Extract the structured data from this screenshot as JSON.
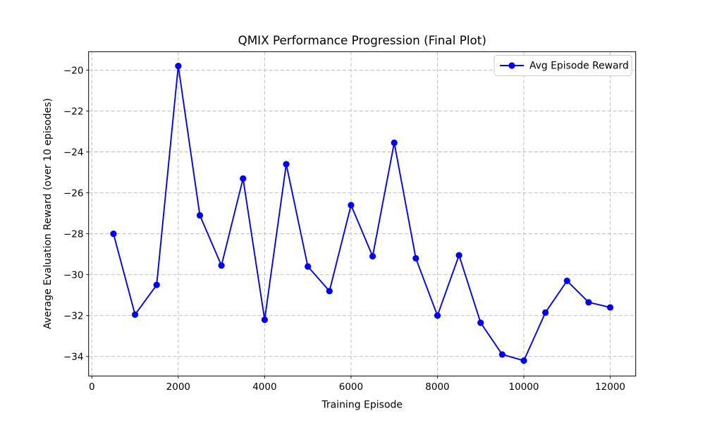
{
  "chart_data": {
    "type": "line",
    "title": "QMIX Performance Progression (Final Plot)",
    "xlabel": "Training Episode",
    "ylabel": "Average Evaluation Reward (over 10 episodes)",
    "legend": {
      "label": "Avg Episode Reward",
      "position": "upper right",
      "marker": "circle"
    },
    "grid": true,
    "grid_color": "#b0b0b0",
    "background_color": "#ffffff",
    "xticks": [
      0,
      2000,
      4000,
      6000,
      8000,
      10000,
      12000
    ],
    "yticks": [
      -34,
      -32,
      -30,
      -28,
      -26,
      -24,
      -22,
      -20
    ],
    "xlim": [
      -75,
      12590
    ],
    "ylim": [
      -34.95,
      -19.1
    ],
    "series": [
      {
        "name": "Avg Episode Reward",
        "color": "#0000ff",
        "marker": "circle",
        "x": [
          500,
          1000,
          1500,
          2000,
          2500,
          3000,
          3500,
          4000,
          4500,
          5000,
          5500,
          6000,
          6500,
          7000,
          7500,
          8000,
          8500,
          9000,
          9500,
          10000,
          10500,
          11000,
          11500,
          12000
        ],
        "y": [
          -28.0,
          -31.95,
          -30.5,
          -19.8,
          -27.1,
          -29.55,
          -25.3,
          -32.2,
          -24.6,
          -29.6,
          -30.8,
          -26.6,
          -29.1,
          -23.55,
          -29.2,
          -32.0,
          -29.05,
          -32.35,
          -33.9,
          -34.2,
          -31.85,
          -30.3,
          -31.35,
          -31.6
        ]
      }
    ]
  }
}
